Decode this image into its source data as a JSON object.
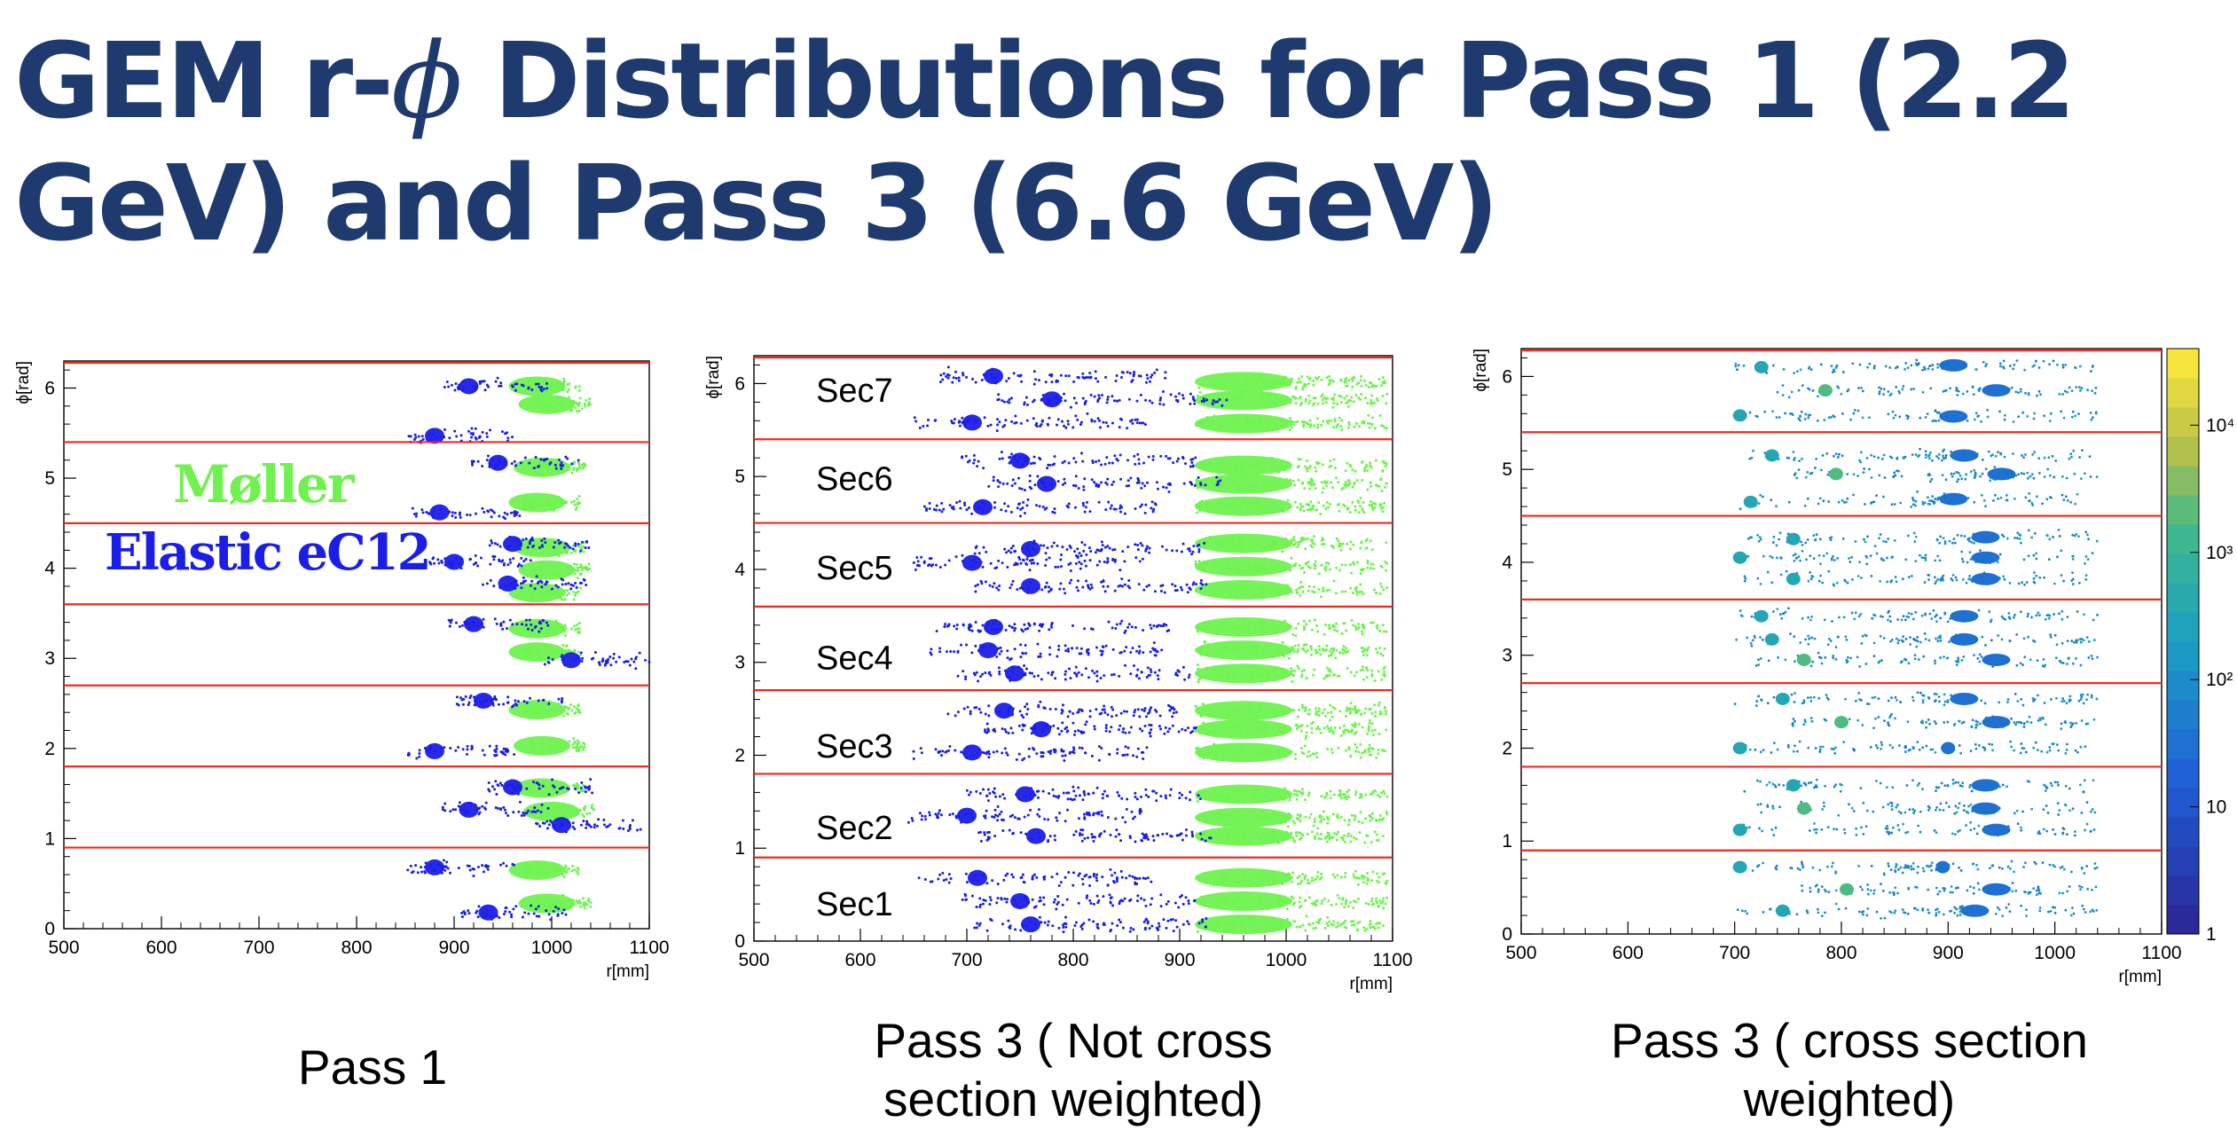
{
  "title": {
    "before_phi": "GEM r-",
    "phi": "ϕ",
    "after_phi": " Distributions for Pass 1 (2.2 GeV) and Pass 3 (6.6 GeV)"
  },
  "colors": {
    "title": "#1f3a6e",
    "moller": "#6ff24f",
    "elastic": "#1a1ee6",
    "sector_boundary": "#ee2a1f"
  },
  "legend": {
    "moller": "Møller",
    "elastic": "Elastic eC12"
  },
  "captions": {
    "pass1": "Pass 1",
    "pass3_unweighted": "Pass 3 ( Not cross section weighted)",
    "pass3_weighted": "Pass 3 ( cross section weighted)"
  },
  "chart_data": [
    {
      "type": "scatter",
      "title": "",
      "xlabel": "r[mm]",
      "ylabel": "ϕ[rad]",
      "xlim": [
        500,
        1100
      ],
      "ylim": [
        0,
        6.3
      ],
      "xticks": [
        500,
        600,
        700,
        800,
        900,
        1000,
        1100
      ],
      "yticks": [
        0,
        1,
        2,
        3,
        4,
        5,
        6
      ],
      "sector_boundaries": [
        0.9,
        1.8,
        2.7,
        3.6,
        4.5,
        5.4,
        6.28
      ],
      "series": [
        {
          "name": "Møller",
          "color": "#6ff24f",
          "clusters": [
            [
              985,
              6.02
            ],
            [
              995,
              5.82
            ],
            [
              990,
              5.12
            ],
            [
              985,
              4.73
            ],
            [
              990,
              4.23
            ],
            [
              995,
              3.98
            ],
            [
              985,
              3.73
            ],
            [
              985,
              3.33
            ],
            [
              985,
              3.07
            ],
            [
              985,
              2.43
            ],
            [
              990,
              2.03
            ],
            [
              990,
              1.56
            ],
            [
              1000,
              1.3
            ],
            [
              985,
              0.65
            ],
            [
              995,
              0.28
            ]
          ]
        },
        {
          "name": "Elastic eC12",
          "color": "#1a1ee6",
          "clusters": [
            [
              915,
              6.02
            ],
            [
              880,
              5.47
            ],
            [
              945,
              5.17
            ],
            [
              885,
              4.62
            ],
            [
              960,
              4.27
            ],
            [
              900,
              4.07
            ],
            [
              955,
              3.83
            ],
            [
              920,
              3.38
            ],
            [
              1020,
              2.98
            ],
            [
              930,
              2.53
            ],
            [
              880,
              1.97
            ],
            [
              960,
              1.57
            ],
            [
              915,
              1.32
            ],
            [
              1010,
              1.15
            ],
            [
              880,
              0.68
            ],
            [
              935,
              0.18
            ]
          ]
        }
      ]
    },
    {
      "type": "scatter",
      "title": "",
      "xlabel": "r[mm]",
      "ylabel": "ϕ[rad]",
      "xlim": [
        500,
        1100
      ],
      "ylim": [
        0,
        6.3
      ],
      "xticks": [
        500,
        600,
        700,
        800,
        900,
        1000,
        1100
      ],
      "yticks": [
        0,
        1,
        2,
        3,
        4,
        5,
        6
      ],
      "sector_boundaries": [
        0.9,
        1.8,
        2.7,
        3.6,
        4.5,
        5.4,
        6.28
      ],
      "sector_labels": [
        "Sec1",
        "Sec2",
        "Sec3",
        "Sec4",
        "Sec5",
        "Sec6",
        "Sec7"
      ],
      "sector_label_phi": [
        0.4,
        1.22,
        2.1,
        3.05,
        4.02,
        4.98,
        5.93
      ],
      "series": [
        {
          "name": "Møller",
          "color": "#6ff24f",
          "clusters": [
            [
              960,
              6.02
            ],
            [
              960,
              5.82
            ],
            [
              960,
              5.57
            ],
            [
              960,
              5.12
            ],
            [
              960,
              4.92
            ],
            [
              960,
              4.68
            ],
            [
              960,
              4.28
            ],
            [
              960,
              4.03
            ],
            [
              960,
              3.78
            ],
            [
              960,
              3.38
            ],
            [
              960,
              3.13
            ],
            [
              960,
              2.88
            ],
            [
              960,
              2.48
            ],
            [
              960,
              2.28
            ],
            [
              960,
              2.03
            ],
            [
              960,
              1.58
            ],
            [
              960,
              1.33
            ],
            [
              960,
              1.13
            ],
            [
              960,
              0.68
            ],
            [
              960,
              0.43
            ],
            [
              960,
              0.18
            ]
          ]
        },
        {
          "name": "Elastic eC12",
          "color": "#1a1ee6",
          "clusters": [
            [
              725,
              6.08
            ],
            [
              780,
              5.83
            ],
            [
              705,
              5.58
            ],
            [
              750,
              5.17
            ],
            [
              775,
              4.92
            ],
            [
              715,
              4.67
            ],
            [
              760,
              4.22
            ],
            [
              705,
              4.07
            ],
            [
              760,
              3.82
            ],
            [
              725,
              3.38
            ],
            [
              720,
              3.13
            ],
            [
              745,
              2.88
            ],
            [
              735,
              2.48
            ],
            [
              770,
              2.28
            ],
            [
              705,
              2.03
            ],
            [
              755,
              1.58
            ],
            [
              700,
              1.35
            ],
            [
              765,
              1.13
            ],
            [
              710,
              0.68
            ],
            [
              750,
              0.43
            ],
            [
              760,
              0.18
            ]
          ]
        }
      ]
    },
    {
      "type": "heatmap",
      "title": "",
      "xlabel": "r[mm]",
      "ylabel": "ϕ[rad]",
      "xlim": [
        500,
        1100
      ],
      "ylim": [
        0,
        6.3
      ],
      "xticks": [
        500,
        600,
        700,
        800,
        900,
        1000,
        1100
      ],
      "yticks": [
        0,
        1,
        2,
        3,
        4,
        5,
        6
      ],
      "sector_boundaries": [
        0.9,
        1.8,
        2.7,
        3.6,
        4.5,
        5.4,
        6.28
      ],
      "colorbar": {
        "min": 1,
        "max": 40000,
        "scale": "log",
        "tick_labels": [
          "1",
          "10",
          "10²",
          "10³",
          "10⁴"
        ],
        "tick_values": [
          1,
          10,
          100,
          1000,
          10000
        ]
      },
      "hotspots": [
        [
          725,
          6.1
        ],
        [
          785,
          5.85
        ],
        [
          705,
          5.58
        ],
        [
          905,
          6.12
        ],
        [
          945,
          5.85
        ],
        [
          905,
          5.57
        ],
        [
          735,
          5.15
        ],
        [
          795,
          4.95
        ],
        [
          715,
          4.65
        ],
        [
          915,
          5.15
        ],
        [
          950,
          4.95
        ],
        [
          905,
          4.68
        ],
        [
          755,
          4.25
        ],
        [
          705,
          4.05
        ],
        [
          755,
          3.82
        ],
        [
          935,
          4.27
        ],
        [
          935,
          4.05
        ],
        [
          935,
          3.82
        ],
        [
          725,
          3.42
        ],
        [
          735,
          3.17
        ],
        [
          765,
          2.95
        ],
        [
          915,
          3.42
        ],
        [
          915,
          3.17
        ],
        [
          945,
          2.95
        ],
        [
          745,
          2.53
        ],
        [
          800,
          2.28
        ],
        [
          705,
          2.0
        ],
        [
          915,
          2.53
        ],
        [
          945,
          2.28
        ],
        [
          900,
          2.0
        ],
        [
          755,
          1.6
        ],
        [
          765,
          1.35
        ],
        [
          705,
          1.12
        ],
        [
          935,
          1.6
        ],
        [
          935,
          1.35
        ],
        [
          945,
          1.12
        ],
        [
          705,
          0.72
        ],
        [
          805,
          0.48
        ],
        [
          745,
          0.25
        ],
        [
          895,
          0.72
        ],
        [
          945,
          0.48
        ],
        [
          925,
          0.25
        ]
      ]
    }
  ]
}
